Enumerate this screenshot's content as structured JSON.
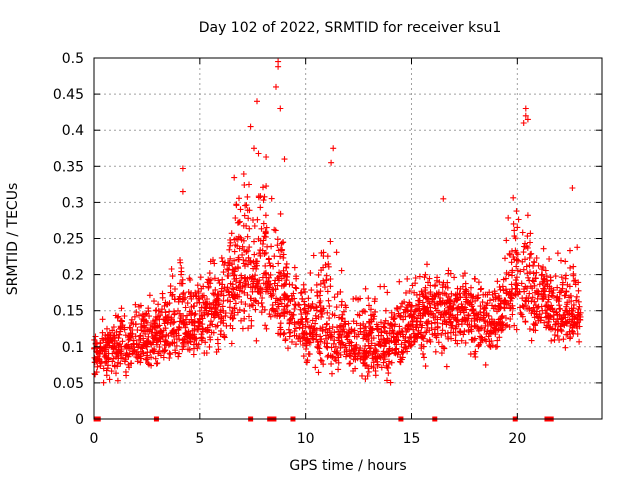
{
  "chart_data": {
    "type": "scatter",
    "title": "Day 102 of 2022, SRMTID for receiver ksu1",
    "xlabel": "GPS time / hours",
    "ylabel": "SRMTID / TECUs",
    "xlim": [
      0,
      24
    ],
    "ylim": [
      0,
      0.5
    ],
    "xticks": [
      0,
      5,
      10,
      15,
      20
    ],
    "xtick_labels": [
      "0",
      "5",
      "10",
      "15",
      "20"
    ],
    "yticks": [
      0,
      0.05,
      0.1,
      0.15,
      0.2,
      0.25,
      0.3,
      0.35,
      0.4,
      0.45,
      0.5
    ],
    "ytick_labels": [
      "0",
      "0.05",
      "0.1",
      "0.15",
      "0.2",
      "0.25",
      "0.3",
      "0.35",
      "0.4",
      "0.45",
      "0.5"
    ],
    "grid": true,
    "marker": "+",
    "series_color": "#ff0000",
    "series": [
      {
        "name": "SRMTID",
        "note": "dense per-satellite samples; binned profile (hour: typical, low, high)",
        "profile": [
          {
            "x": 0.0,
            "mid": 0.09,
            "low": 0.05,
            "high": 0.13
          },
          {
            "x": 1.0,
            "mid": 0.1,
            "low": 0.04,
            "high": 0.16
          },
          {
            "x": 2.0,
            "mid": 0.11,
            "low": 0.06,
            "high": 0.17
          },
          {
            "x": 3.0,
            "mid": 0.11,
            "low": 0.06,
            "high": 0.19
          },
          {
            "x": 4.0,
            "mid": 0.13,
            "low": 0.07,
            "high": 0.26
          },
          {
            "x": 5.0,
            "mid": 0.14,
            "low": 0.07,
            "high": 0.22
          },
          {
            "x": 6.0,
            "mid": 0.16,
            "low": 0.08,
            "high": 0.26
          },
          {
            "x": 7.0,
            "mid": 0.2,
            "low": 0.1,
            "high": 0.4
          },
          {
            "x": 8.0,
            "mid": 0.2,
            "low": 0.1,
            "high": 0.42
          },
          {
            "x": 9.0,
            "mid": 0.17,
            "low": 0.08,
            "high": 0.3
          },
          {
            "x": 10.0,
            "mid": 0.13,
            "low": 0.06,
            "high": 0.22
          },
          {
            "x": 11.0,
            "mid": 0.13,
            "low": 0.05,
            "high": 0.3
          },
          {
            "x": 12.0,
            "mid": 0.11,
            "low": 0.05,
            "high": 0.2
          },
          {
            "x": 13.0,
            "mid": 0.1,
            "low": 0.04,
            "high": 0.2
          },
          {
            "x": 14.0,
            "mid": 0.11,
            "low": 0.04,
            "high": 0.2
          },
          {
            "x": 15.0,
            "mid": 0.13,
            "low": 0.06,
            "high": 0.22
          },
          {
            "x": 16.0,
            "mid": 0.15,
            "low": 0.07,
            "high": 0.24
          },
          {
            "x": 17.0,
            "mid": 0.15,
            "low": 0.06,
            "high": 0.22
          },
          {
            "x": 18.0,
            "mid": 0.15,
            "low": 0.07,
            "high": 0.22
          },
          {
            "x": 19.0,
            "mid": 0.13,
            "low": 0.07,
            "high": 0.2
          },
          {
            "x": 20.0,
            "mid": 0.2,
            "low": 0.1,
            "high": 0.35
          },
          {
            "x": 21.0,
            "mid": 0.16,
            "low": 0.08,
            "high": 0.25
          },
          {
            "x": 22.0,
            "mid": 0.15,
            "low": 0.08,
            "high": 0.25
          },
          {
            "x": 23.0,
            "mid": 0.15,
            "low": 0.09,
            "high": 0.29
          }
        ],
        "highlights": [
          {
            "x": 4.2,
            "y": 0.347
          },
          {
            "x": 4.2,
            "y": 0.315
          },
          {
            "x": 7.7,
            "y": 0.44
          },
          {
            "x": 8.7,
            "y": 0.495
          },
          {
            "x": 8.7,
            "y": 0.488
          },
          {
            "x": 8.6,
            "y": 0.46
          },
          {
            "x": 7.4,
            "y": 0.405
          },
          {
            "x": 8.8,
            "y": 0.43
          },
          {
            "x": 11.3,
            "y": 0.375
          },
          {
            "x": 11.2,
            "y": 0.355
          },
          {
            "x": 20.4,
            "y": 0.43
          },
          {
            "x": 20.4,
            "y": 0.42
          },
          {
            "x": 20.3,
            "y": 0.41
          },
          {
            "x": 20.5,
            "y": 0.415
          },
          {
            "x": 22.6,
            "y": 0.32
          },
          {
            "x": 16.5,
            "y": 0.305
          },
          {
            "x": 9.0,
            "y": 0.36
          }
        ]
      }
    ],
    "zero_markers_x": [
      0.1,
      0.2,
      2.95,
      7.4,
      8.3,
      8.5,
      9.4,
      14.5,
      16.1,
      19.9,
      21.4,
      21.6
    ]
  }
}
